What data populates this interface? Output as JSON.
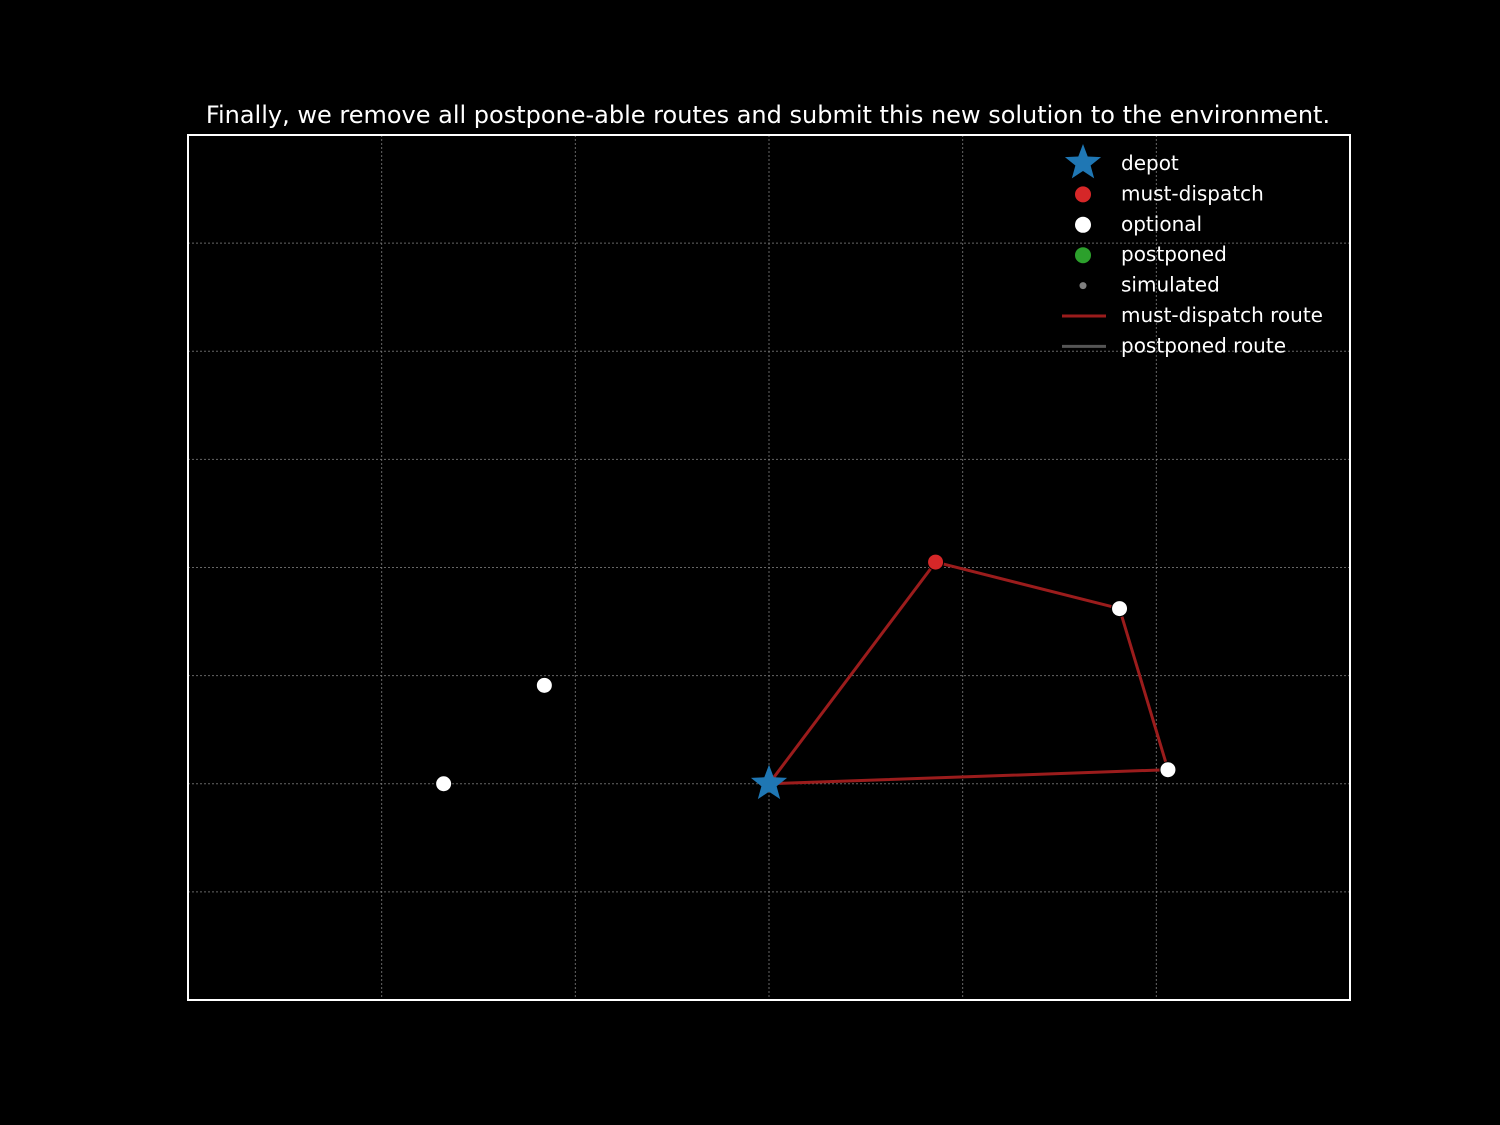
{
  "chart_data": {
    "type": "scatter",
    "title": "Finally, we remove all postpone-able routes and submit this new solution to the environment.",
    "xlabel": "",
    "ylabel": "",
    "xlim": [
      0,
      6
    ],
    "ylim": [
      0,
      8
    ],
    "grid": true,
    "axis_ticks_visible": false,
    "legend_position": "top-right",
    "colors": {
      "background": "#000000",
      "axes_frame": "#ffffff",
      "grid": "#808080",
      "depot": "#1f77b4",
      "must_dispatch": "#d62728",
      "optional": "#ffffff",
      "postponed": "#2ca02c",
      "simulated": "#808080",
      "must_dispatch_route": "#9b1c1c",
      "postponed_route": "#555555"
    },
    "legend": [
      {
        "key": "depot",
        "label": "depot",
        "marker": "star"
      },
      {
        "key": "must_dispatch",
        "label": "must-dispatch",
        "marker": "circle"
      },
      {
        "key": "optional",
        "label": "optional",
        "marker": "circle"
      },
      {
        "key": "postponed",
        "label": "postponed",
        "marker": "circle"
      },
      {
        "key": "simulated",
        "label": "simulated",
        "marker": "small-circle"
      },
      {
        "key": "must_dispatch_route",
        "label": "must-dispatch route",
        "marker": "line"
      },
      {
        "key": "postponed_route",
        "label": "postponed route",
        "marker": "line"
      }
    ],
    "series": [
      {
        "key": "depot",
        "points": [
          [
            3.0,
            2.0
          ]
        ]
      },
      {
        "key": "must_dispatch",
        "points": [
          [
            3.86,
            4.05
          ]
        ]
      },
      {
        "key": "optional",
        "points": [
          [
            4.81,
            3.62
          ],
          [
            5.06,
            2.13
          ],
          [
            1.84,
            2.91
          ],
          [
            1.32,
            2.0
          ]
        ]
      },
      {
        "key": "postponed",
        "points": []
      },
      {
        "key": "simulated",
        "points": []
      }
    ],
    "routes": [
      {
        "key": "must_dispatch_route",
        "path": [
          [
            3.0,
            2.0
          ],
          [
            3.86,
            4.05
          ],
          [
            4.81,
            3.62
          ],
          [
            5.06,
            2.13
          ],
          [
            3.0,
            2.0
          ]
        ]
      }
    ]
  }
}
